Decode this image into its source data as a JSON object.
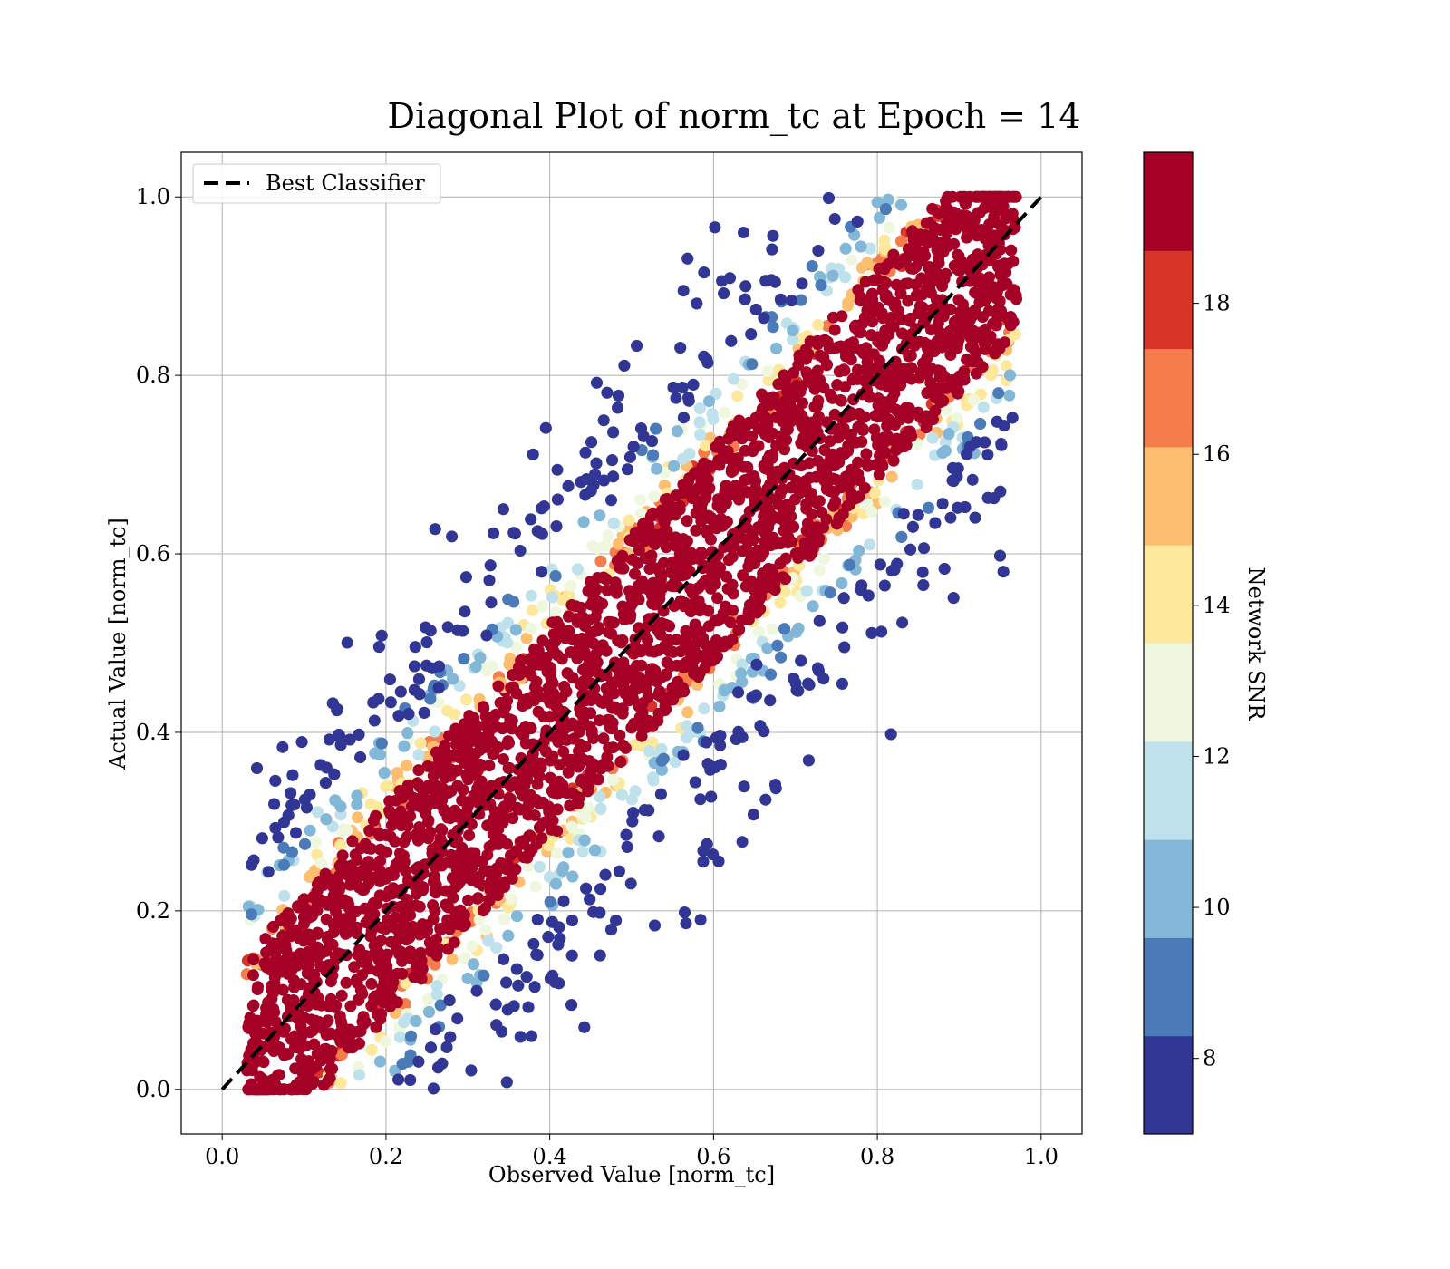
{
  "chart_data": {
    "type": "scatter",
    "title": "Diagonal Plot of norm_tc at Epoch = 14",
    "xlabel": "Observed Value [norm_tc]",
    "ylabel": "Actual Value [norm_tc]",
    "xlim": [
      -0.05,
      1.05
    ],
    "ylim": [
      -0.05,
      1.05
    ],
    "x_ticks": [
      "0.0",
      "0.2",
      "0.4",
      "0.6",
      "0.8",
      "1.0"
    ],
    "y_ticks": [
      "0.0",
      "0.2",
      "0.4",
      "0.6",
      "0.8",
      "1.0"
    ],
    "grid": true,
    "legend": {
      "placement": "top-left",
      "entries": [
        {
          "label": "Best Classifier",
          "style": "black dashed line"
        }
      ]
    },
    "reference_line": {
      "label": "Best Classifier",
      "x": [
        0.0,
        1.0
      ],
      "y": [
        0.0,
        1.0
      ],
      "color": "#000000"
    },
    "colorbar": {
      "label": "Network SNR",
      "range": [
        7.0,
        20.0
      ],
      "ticks": [
        "8",
        "10",
        "12",
        "14",
        "16",
        "18"
      ],
      "levels": [
        {
          "from": 7.0,
          "to": 8.3,
          "color": "#313695"
        },
        {
          "from": 8.3,
          "to": 9.6,
          "color": "#4a7ab8"
        },
        {
          "from": 9.6,
          "to": 10.9,
          "color": "#82b7d7"
        },
        {
          "from": 10.9,
          "to": 12.2,
          "color": "#bfe1ec"
        },
        {
          "from": 12.2,
          "to": 13.5,
          "color": "#eff8df"
        },
        {
          "from": 13.5,
          "to": 14.8,
          "color": "#fee89c"
        },
        {
          "from": 14.8,
          "to": 16.1,
          "color": "#fdbe70"
        },
        {
          "from": 16.1,
          "to": 17.4,
          "color": "#f57c4b"
        },
        {
          "from": 17.4,
          "to": 18.7,
          "color": "#d83529"
        },
        {
          "from": 18.7,
          "to": 20.0,
          "color": "#a50026"
        }
      ]
    },
    "scatter_summary": {
      "x_range": [
        0.03,
        0.97
      ],
      "y_range": [
        0.0,
        1.0
      ],
      "core_band_halfwidth": 0.12,
      "core_color": "#a50026",
      "note": "dense high-SNR core along y = x, lower-SNR points scattered farther from the diagonal"
    }
  }
}
